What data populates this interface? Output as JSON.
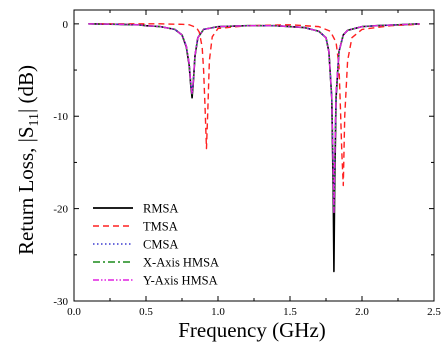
{
  "chart_data": {
    "type": "line",
    "title": "",
    "xlabel": "Frequency (GHz)",
    "ylabel_prefix": "Return Loss, |S",
    "ylabel_sub": "11",
    "ylabel_suffix": "| (dB)",
    "xlim": [
      0.0,
      2.5
    ],
    "ylim": [
      -30,
      1.5
    ],
    "xticks": [
      0.0,
      0.5,
      1.0,
      1.5,
      2.0,
      2.5
    ],
    "xtick_labels": [
      "0.0",
      "0.5",
      "1.0",
      "1.5",
      "2.0",
      "2.5"
    ],
    "yticks": [
      0,
      -10,
      -20,
      -30
    ],
    "ytick_labels": [
      "0",
      "-10",
      "-20",
      "-30"
    ],
    "grid": false,
    "legend_position": "bottom-left",
    "series": [
      {
        "name": "RMSA",
        "color": "#000000",
        "dash": "solid",
        "x": [
          0.1,
          0.3,
          0.45,
          0.5,
          0.6,
          0.7,
          0.75,
          0.78,
          0.8,
          0.81,
          0.82,
          0.83,
          0.84,
          0.86,
          0.9,
          1.0,
          1.2,
          1.4,
          1.6,
          1.7,
          1.75,
          1.77,
          1.79,
          1.8,
          1.805,
          1.81,
          1.82,
          1.84,
          1.87,
          1.9,
          2.0,
          2.1,
          2.25,
          2.4
        ],
        "y": [
          0,
          -0.05,
          -0.1,
          -0.2,
          -0.3,
          -0.6,
          -1.2,
          -2.5,
          -4.5,
          -6.5,
          -8,
          -6,
          -3.5,
          -1.5,
          -0.6,
          -0.3,
          -0.2,
          -0.2,
          -0.4,
          -0.8,
          -1.5,
          -3,
          -8,
          -18,
          -26.8,
          -18,
          -8,
          -3,
          -1.2,
          -0.7,
          -0.3,
          -0.2,
          -0.1,
          0
        ]
      },
      {
        "name": "TMSA",
        "color": "#ff2020",
        "dash": "6,4",
        "x": [
          0.1,
          0.4,
          0.6,
          0.75,
          0.8,
          0.85,
          0.87,
          0.89,
          0.9,
          0.91,
          0.92,
          0.93,
          0.94,
          0.96,
          1.0,
          1.2,
          1.5,
          1.7,
          1.78,
          1.82,
          1.84,
          1.85,
          1.86,
          1.87,
          1.88,
          1.9,
          1.93,
          2.0,
          2.2,
          2.4
        ],
        "y": [
          0,
          0,
          0,
          -0.05,
          -0.1,
          -0.4,
          -0.9,
          -2.5,
          -5,
          -9,
          -13.5,
          -9,
          -4,
          -1.4,
          -0.5,
          -0.2,
          -0.1,
          -0.3,
          -0.8,
          -2,
          -4.5,
          -9,
          -14,
          -17.5,
          -10,
          -4,
          -1.5,
          -0.6,
          -0.2,
          -0.05
        ]
      },
      {
        "name": "CMSA",
        "color": "#3a3ad0",
        "dash": "1.5,2.5",
        "x": [
          0.1,
          0.3,
          0.45,
          0.5,
          0.6,
          0.7,
          0.75,
          0.78,
          0.8,
          0.81,
          0.82,
          0.83,
          0.84,
          0.86,
          0.9,
          1.0,
          1.2,
          1.4,
          1.6,
          1.7,
          1.75,
          1.77,
          1.79,
          1.8,
          1.805,
          1.81,
          1.82,
          1.84,
          1.87,
          1.9,
          2.0,
          2.1,
          2.25,
          2.4
        ],
        "y": [
          0,
          -0.05,
          -0.1,
          -0.2,
          -0.3,
          -0.6,
          -1.2,
          -2.4,
          -4.3,
          -6.2,
          -7.4,
          -5.8,
          -3.4,
          -1.5,
          -0.6,
          -0.3,
          -0.2,
          -0.2,
          -0.4,
          -0.8,
          -1.5,
          -3,
          -8,
          -15,
          -20,
          -15,
          -7.5,
          -3,
          -1.2,
          -0.7,
          -0.3,
          -0.2,
          -0.1,
          0
        ]
      },
      {
        "name": "X-Axis HMSA",
        "color": "#1a8a1a",
        "dash": "7,3,2,3",
        "x": [
          0.1,
          0.3,
          0.45,
          0.5,
          0.6,
          0.7,
          0.75,
          0.78,
          0.8,
          0.81,
          0.82,
          0.83,
          0.84,
          0.86,
          0.9,
          1.0,
          1.2,
          1.4,
          1.6,
          1.7,
          1.75,
          1.77,
          1.79,
          1.8,
          1.805,
          1.81,
          1.82,
          1.84,
          1.87,
          1.9,
          2.0,
          2.1,
          2.25,
          2.4
        ],
        "y": [
          0,
          -0.05,
          -0.1,
          -0.2,
          -0.3,
          -0.6,
          -1.2,
          -2.4,
          -4.3,
          -6.3,
          -7.6,
          -5.9,
          -3.4,
          -1.5,
          -0.6,
          -0.3,
          -0.2,
          -0.2,
          -0.4,
          -0.8,
          -1.5,
          -3,
          -8,
          -15.5,
          -20.5,
          -15.5,
          -7.5,
          -3,
          -1.2,
          -0.7,
          -0.3,
          -0.2,
          -0.1,
          0
        ]
      },
      {
        "name": "Y-Axis HMSA",
        "color": "#e020e0",
        "dash": "6,2,1.5,2,1.5,2",
        "x": [
          0.1,
          0.3,
          0.45,
          0.5,
          0.6,
          0.7,
          0.75,
          0.78,
          0.8,
          0.81,
          0.82,
          0.83,
          0.84,
          0.86,
          0.9,
          1.0,
          1.2,
          1.4,
          1.6,
          1.7,
          1.75,
          1.77,
          1.79,
          1.8,
          1.805,
          1.81,
          1.82,
          1.84,
          1.87,
          1.9,
          2.0,
          2.1,
          2.25,
          2.4
        ],
        "y": [
          0,
          -0.05,
          -0.1,
          -0.2,
          -0.3,
          -0.6,
          -1.2,
          -2.4,
          -4.3,
          -6.3,
          -7.6,
          -5.9,
          -3.4,
          -1.5,
          -0.6,
          -0.3,
          -0.2,
          -0.2,
          -0.4,
          -0.8,
          -1.5,
          -3,
          -8,
          -15.5,
          -20.5,
          -15.5,
          -7.5,
          -3,
          -1.2,
          -0.7,
          -0.3,
          -0.2,
          -0.1,
          0
        ]
      }
    ]
  }
}
